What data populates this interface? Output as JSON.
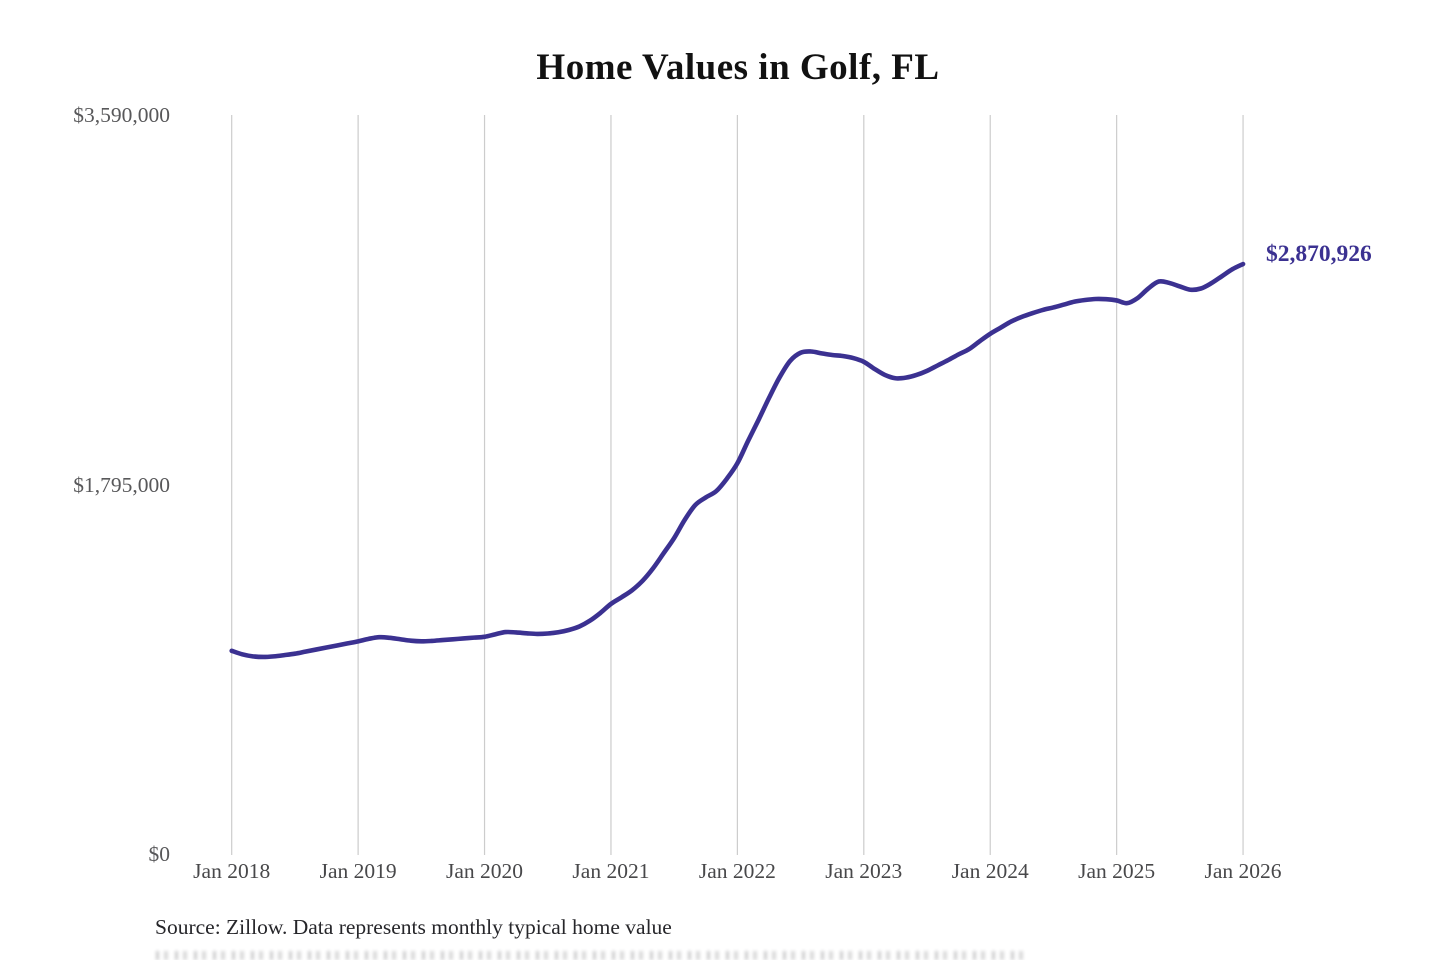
{
  "page": {
    "title": "Home Values in Golf, FL",
    "source_note": "Source: Zillow. Data represents monthly typical home value"
  },
  "annotation": {
    "latest_value_label": "$2,870,926",
    "latest_value": 2870926
  },
  "colors": {
    "background": "#ffffff",
    "line": "#3b3191",
    "annotation_text": "#3b3191",
    "gridline": "#cccccc",
    "title_text": "#111111",
    "y_tick_text": "#58585a",
    "x_tick_text": "#48484a",
    "source_text": "#26262a"
  },
  "chart_data": {
    "type": "line",
    "title": "Home Values in Golf, FL",
    "xlabel": "",
    "ylabel": "",
    "ylim": [
      0,
      3590000
    ],
    "grid": "vertical-only",
    "legend": "none",
    "y_ticks": [
      {
        "label": "$3,590,000",
        "value": 3590000
      },
      {
        "label": "$1,795,000",
        "value": 1795000
      },
      {
        "label": "$0",
        "value": 0
      }
    ],
    "x_tick_labels": [
      "Jan 2018",
      "Jan 2019",
      "Jan 2020",
      "Jan 2021",
      "Jan 2022",
      "Jan 2023",
      "Jan 2024",
      "Jan 2025",
      "Jan 2026"
    ],
    "x_months_start": "2018-01",
    "x_months_step_months": 1,
    "points": 97,
    "series": [
      {
        "name": "Monthly typical home value",
        "values": [
          992000,
          975000,
          965000,
          962000,
          965000,
          971000,
          978000,
          988000,
          998000,
          1008000,
          1018000,
          1028000,
          1038000,
          1050000,
          1058000,
          1055000,
          1048000,
          1041000,
          1038000,
          1040000,
          1044000,
          1048000,
          1052000,
          1056000,
          1060000,
          1072000,
          1083000,
          1081000,
          1077000,
          1074000,
          1076000,
          1082000,
          1093000,
          1110000,
          1138000,
          1176000,
          1220000,
          1252000,
          1286000,
          1332000,
          1393000,
          1466000,
          1540000,
          1628000,
          1700000,
          1737000,
          1768000,
          1828000,
          1903000,
          2010000,
          2113000,
          2220000,
          2320000,
          2400000,
          2440000,
          2446000,
          2437000,
          2429000,
          2424000,
          2414000,
          2396000,
          2362000,
          2332000,
          2316000,
          2319000,
          2332000,
          2352000,
          2378000,
          2404000,
          2432000,
          2458000,
          2496000,
          2532000,
          2562000,
          2592000,
          2614000,
          2632000,
          2648000,
          2660000,
          2674000,
          2688000,
          2696000,
          2701000,
          2700000,
          2694000,
          2681000,
          2706000,
          2752000,
          2786000,
          2779000,
          2762000,
          2746000,
          2752000,
          2778000,
          2812000,
          2846000,
          2870926
        ]
      }
    ]
  }
}
